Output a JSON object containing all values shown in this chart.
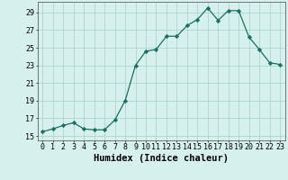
{
  "xlabel": "Humidex (Indice chaleur)",
  "x": [
    0,
    1,
    2,
    3,
    4,
    5,
    6,
    7,
    8,
    9,
    10,
    11,
    12,
    13,
    14,
    15,
    16,
    17,
    18,
    19,
    20,
    21,
    22,
    23
  ],
  "y": [
    15.5,
    15.8,
    16.2,
    16.5,
    15.8,
    15.7,
    15.7,
    16.8,
    19.0,
    23.0,
    24.6,
    24.8,
    26.3,
    26.3,
    27.5,
    28.2,
    29.5,
    28.1,
    29.2,
    29.2,
    26.2,
    24.8,
    23.3,
    23.1
  ],
  "line_color": "#1a7060",
  "marker": "D",
  "marker_size": 2.2,
  "bg_color": "#d6f0ee",
  "grid_color": "#aed4d0",
  "ylim": [
    14.5,
    30.2
  ],
  "yticks": [
    15,
    17,
    19,
    21,
    23,
    25,
    27,
    29
  ],
  "xlim": [
    -0.5,
    23.5
  ],
  "axis_fontsize": 6.5,
  "tick_fontsize": 6.0,
  "xlabel_fontsize": 7.5
}
